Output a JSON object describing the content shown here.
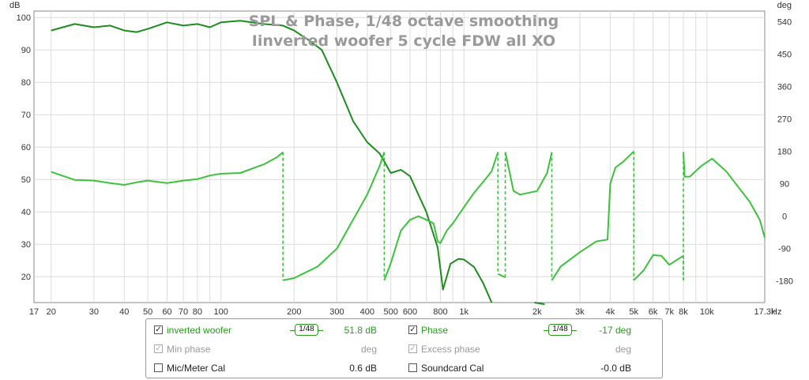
{
  "chart_data": {
    "type": "line",
    "title": "SPL & Phase, 1/48 octave smoothing",
    "subtitle": "Iinverted woofer 5 cycle FDW all XO",
    "y_left_unit": "dB",
    "y_right_unit": "deg",
    "x_unit": "Hz",
    "x_scale": "log",
    "xlim": [
      17,
      17300
    ],
    "ylim_left": [
      12,
      102
    ],
    "ylim_right": [
      -240,
      570
    ],
    "grid": true,
    "x_tick_labels": [
      {
        "v": 17,
        "t": "17"
      },
      {
        "v": 20,
        "t": "20"
      },
      {
        "v": 30,
        "t": "30"
      },
      {
        "v": 40,
        "t": "40"
      },
      {
        "v": 50,
        "t": "50"
      },
      {
        "v": 60,
        "t": "60"
      },
      {
        "v": 70,
        "t": "70"
      },
      {
        "v": 80,
        "t": "80"
      },
      {
        "v": 100,
        "t": "100"
      },
      {
        "v": 200,
        "t": "200"
      },
      {
        "v": 300,
        "t": "300"
      },
      {
        "v": 400,
        "t": "400"
      },
      {
        "v": 500,
        "t": "500"
      },
      {
        "v": 600,
        "t": "600"
      },
      {
        "v": 800,
        "t": "800"
      },
      {
        "v": 1000,
        "t": "1k"
      },
      {
        "v": 2000,
        "t": "2k"
      },
      {
        "v": 3000,
        "t": "3k"
      },
      {
        "v": 4000,
        "t": "4k"
      },
      {
        "v": 5000,
        "t": "5k"
      },
      {
        "v": 6000,
        "t": "6k"
      },
      {
        "v": 7000,
        "t": "7k"
      },
      {
        "v": 8000,
        "t": "8k"
      },
      {
        "v": 10000,
        "t": "10k"
      },
      {
        "v": 17300,
        "t": "17.3k"
      }
    ],
    "y_left_ticks": [
      20,
      30,
      40,
      50,
      60,
      70,
      80,
      90,
      100
    ],
    "y_right_ticks": [
      -180,
      -90,
      0,
      90,
      180,
      270,
      360,
      450,
      540
    ],
    "series": [
      {
        "name": "inverted woofer",
        "axis": "left",
        "color": "#1e8c1e",
        "points": [
          [
            20,
            96
          ],
          [
            25,
            98
          ],
          [
            30,
            97
          ],
          [
            35,
            97.5
          ],
          [
            40,
            96
          ],
          [
            45,
            95.5
          ],
          [
            50,
            96.5
          ],
          [
            60,
            98.5
          ],
          [
            70,
            97.5
          ],
          [
            80,
            98
          ],
          [
            90,
            97
          ],
          [
            100,
            98.5
          ],
          [
            120,
            99
          ],
          [
            150,
            98
          ],
          [
            180,
            97.5
          ],
          [
            200,
            96
          ],
          [
            230,
            93
          ],
          [
            260,
            90
          ],
          [
            300,
            80
          ],
          [
            350,
            68
          ],
          [
            400,
            61.5
          ],
          [
            450,
            58
          ],
          [
            500,
            52
          ],
          [
            550,
            53
          ],
          [
            600,
            51
          ],
          [
            700,
            40
          ],
          [
            780,
            29
          ],
          [
            820,
            16
          ],
          [
            880,
            24
          ],
          [
            950,
            25.5
          ],
          [
            1000,
            25.3
          ],
          [
            1100,
            23
          ],
          [
            1200,
            18
          ],
          [
            1300,
            12
          ]
        ]
      },
      {
        "name": "inverted woofer",
        "axis": "left",
        "color": "#1e8c1e",
        "points": [
          [
            1950,
            12
          ],
          [
            2150,
            11.5
          ]
        ]
      },
      {
        "name": "Phase",
        "axis": "right",
        "color": "#3cc23c",
        "points": [
          [
            20,
            123
          ],
          [
            25,
            101
          ],
          [
            30,
            99
          ],
          [
            35,
            92
          ],
          [
            40,
            87
          ],
          [
            45,
            94
          ],
          [
            50,
            99
          ],
          [
            60,
            92
          ],
          [
            70,
            99
          ],
          [
            80,
            103
          ],
          [
            90,
            113
          ],
          [
            100,
            118
          ],
          [
            120,
            120
          ],
          [
            150,
            144
          ],
          [
            170,
            164
          ],
          [
            180,
            178
          ],
          [
            180,
            -178
          ],
          [
            200,
            -172
          ],
          [
            250,
            -140
          ],
          [
            300,
            -90
          ],
          [
            400,
            60
          ],
          [
            450,
            140
          ],
          [
            470,
            178
          ],
          [
            470,
            -178
          ],
          [
            500,
            -130
          ],
          [
            550,
            -40
          ],
          [
            600,
            -10
          ],
          [
            650,
            0
          ],
          [
            700,
            -10
          ],
          [
            750,
            -20
          ],
          [
            780,
            -70
          ],
          [
            800,
            -75
          ],
          [
            850,
            -40
          ],
          [
            900,
            -20
          ],
          [
            1000,
            25
          ],
          [
            1100,
            65
          ],
          [
            1250,
            110
          ],
          [
            1300,
            125
          ],
          [
            1380,
            178
          ],
          [
            1380,
            -160
          ],
          [
            1480,
            -170
          ],
          [
            1480,
            178
          ],
          [
            1600,
            70
          ],
          [
            1700,
            60
          ],
          [
            2000,
            70
          ],
          [
            2200,
            120
          ],
          [
            2300,
            178
          ],
          [
            2300,
            -178
          ],
          [
            2500,
            -140
          ],
          [
            3000,
            -100
          ],
          [
            3500,
            -70
          ],
          [
            3900,
            -65
          ],
          [
            4000,
            90
          ],
          [
            4200,
            135
          ],
          [
            4500,
            150
          ],
          [
            5000,
            180
          ],
          [
            5000,
            -178
          ],
          [
            5500,
            -150
          ],
          [
            6000,
            -108
          ],
          [
            6500,
            -110
          ],
          [
            7000,
            -135
          ],
          [
            7500,
            -122
          ],
          [
            8000,
            -110
          ],
          [
            8000,
            -178
          ],
          [
            8000,
            178
          ],
          [
            8100,
            110
          ],
          [
            8500,
            110
          ],
          [
            9500,
            140
          ],
          [
            10500,
            160
          ],
          [
            12000,
            125
          ],
          [
            13500,
            80
          ],
          [
            15000,
            40
          ],
          [
            16500,
            -10
          ],
          [
            17300,
            -60
          ]
        ]
      }
    ]
  },
  "legend": {
    "rows": [
      {
        "checked": true,
        "enabled": true,
        "label": "inverted woofer",
        "smoothing": "1/48",
        "value": "51.8 dB"
      },
      {
        "checked": true,
        "enabled": false,
        "label": "Min phase",
        "value": "deg"
      },
      {
        "checked": false,
        "enabled": true,
        "label": "Mic/Meter Cal",
        "value": "0.6 dB"
      }
    ],
    "rows_right": [
      {
        "checked": true,
        "enabled": true,
        "label": "Phase",
        "smoothing": "1/48",
        "value": "-17 deg"
      },
      {
        "checked": true,
        "enabled": false,
        "label": "Excess phase",
        "value": "deg"
      },
      {
        "checked": false,
        "enabled": true,
        "label": "Soundcard Cal",
        "value": "-0.0 dB"
      }
    ],
    "check_mark": "✓"
  }
}
